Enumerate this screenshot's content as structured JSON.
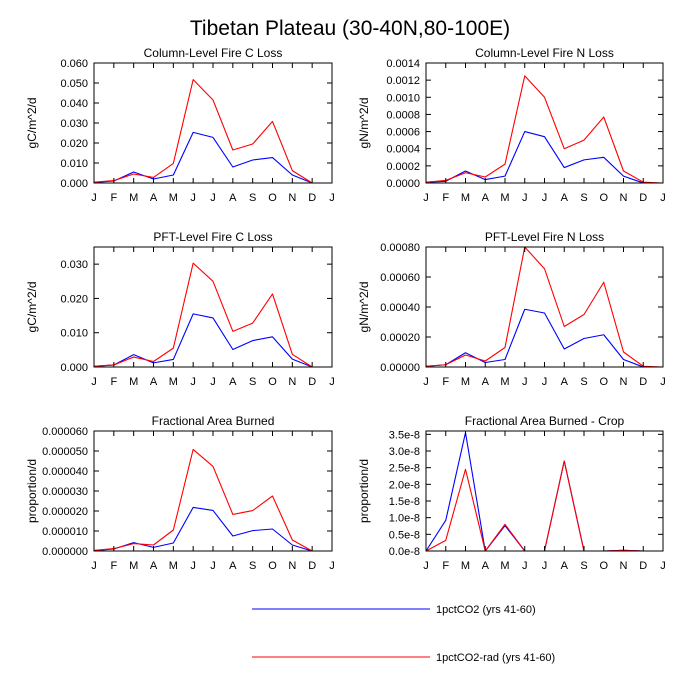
{
  "figure_title": "Tibetan Plateau (30-40N,80-100E)",
  "colors": {
    "series1": "#0000ff",
    "series2": "#ff0000",
    "frame": "#000000"
  },
  "legend": [
    {
      "label": "1pctCO2 (yrs 41-60)",
      "color": "#0000ff"
    },
    {
      "label": "1pctCO2-rad (yrs 41-60)",
      "color": "#ff0000"
    }
  ],
  "chart_data": [
    {
      "type": "line",
      "title": "Column-Level Fire C Loss",
      "ylabel": "gC/m^2/d",
      "categories": [
        "J",
        "F",
        "M",
        "A",
        "M",
        "J",
        "J",
        "A",
        "S",
        "O",
        "N",
        "D",
        "J"
      ],
      "ylim": [
        0,
        0.06
      ],
      "yticks": [
        0,
        0.01,
        0.02,
        0.03,
        0.04,
        0.05,
        0.06
      ],
      "ytick_labels": [
        "0.000",
        "0.010",
        "0.020",
        "0.030",
        "0.040",
        "0.050",
        "0.060"
      ],
      "series": [
        {
          "name": "1pctCO2 (yrs 41-60)",
          "values": [
            0.0003,
            0.001,
            0.0055,
            0.002,
            0.004,
            0.0253,
            0.0228,
            0.008,
            0.0115,
            0.0127,
            0.004,
            0,
            0
          ]
        },
        {
          "name": "1pctCO2-rad (yrs 41-60)",
          "values": [
            0.0004,
            0.0012,
            0.0045,
            0.0028,
            0.0098,
            0.0517,
            0.0415,
            0.0165,
            0.0195,
            0.0308,
            0.0062,
            0,
            0
          ]
        }
      ]
    },
    {
      "type": "line",
      "title": "Column-Level Fire N Loss",
      "ylabel": "gN/m^2/d",
      "categories": [
        "J",
        "F",
        "M",
        "A",
        "M",
        "J",
        "J",
        "A",
        "S",
        "O",
        "N",
        "D",
        "J"
      ],
      "ylim": [
        0,
        0.0014
      ],
      "yticks": [
        0,
        0.0002,
        0.0004,
        0.0006,
        0.0008,
        0.001,
        0.0012,
        0.0014
      ],
      "ytick_labels": [
        "0.0000",
        "0.0002",
        "0.0004",
        "0.0006",
        "0.0008",
        "0.0010",
        "0.0012",
        "0.0014"
      ],
      "series": [
        {
          "name": "1pctCO2 (yrs 41-60)",
          "values": [
            1e-05,
            2e-05,
            0.00014,
            4e-05,
            8e-05,
            0.0006,
            0.00054,
            0.00018,
            0.00027,
            0.0003,
            8e-05,
            0,
            0
          ]
        },
        {
          "name": "1pctCO2-rad (yrs 41-60)",
          "values": [
            1e-05,
            3e-05,
            0.00012,
            7e-05,
            0.00022,
            0.00125,
            0.001,
            0.0004,
            0.0005,
            0.00077,
            0.00014,
            1e-05,
            0
          ]
        }
      ]
    },
    {
      "type": "line",
      "title": "PFT-Level Fire C Loss",
      "ylabel": "gC/m^2/d",
      "categories": [
        "J",
        "F",
        "M",
        "A",
        "M",
        "J",
        "J",
        "A",
        "S",
        "O",
        "N",
        "D",
        "J"
      ],
      "ylim": [
        0,
        0.035
      ],
      "yticks": [
        0,
        0.01,
        0.02,
        0.03
      ],
      "ytick_labels": [
        "0.000",
        "0.010",
        "0.020",
        "0.030"
      ],
      "series": [
        {
          "name": "1pctCO2 (yrs 41-60)",
          "values": [
            0.0002,
            0.0006,
            0.0036,
            0.0012,
            0.0022,
            0.0155,
            0.0143,
            0.0051,
            0.0077,
            0.0088,
            0.0023,
            0,
            0
          ]
        },
        {
          "name": "1pctCO2-rad (yrs 41-60)",
          "values": [
            0.0002,
            0.0006,
            0.0029,
            0.0016,
            0.0055,
            0.0303,
            0.025,
            0.0104,
            0.0128,
            0.0213,
            0.0037,
            0,
            0
          ]
        }
      ]
    },
    {
      "type": "line",
      "title": "PFT-Level Fire N Loss",
      "ylabel": "gN/m^2/d",
      "categories": [
        "J",
        "F",
        "M",
        "A",
        "M",
        "J",
        "J",
        "A",
        "S",
        "O",
        "N",
        "D",
        "J"
      ],
      "ylim": [
        0,
        0.0008
      ],
      "yticks": [
        0,
        0.0002,
        0.0004,
        0.0006,
        0.0008
      ],
      "ytick_labels": [
        "0.00000",
        "0.00020",
        "0.00040",
        "0.00060",
        "0.00080"
      ],
      "series": [
        {
          "name": "1pctCO2 (yrs 41-60)",
          "values": [
            5e-06,
            1.5e-05,
            9.5e-05,
            3e-05,
            5e-05,
            0.000385,
            0.00036,
            0.00012,
            0.00019,
            0.000215,
            5e-05,
            0,
            0
          ]
        },
        {
          "name": "1pctCO2-rad (yrs 41-60)",
          "values": [
            5e-06,
            1.5e-05,
            8e-05,
            4e-05,
            0.00013,
            0.0008,
            0.000655,
            0.00027,
            0.00035,
            0.000565,
            0.0001,
            5e-06,
            0
          ]
        }
      ]
    },
    {
      "type": "line",
      "title": "Fractional Area Burned",
      "ylabel": "proportion/d",
      "categories": [
        "J",
        "F",
        "M",
        "A",
        "M",
        "J",
        "J",
        "A",
        "S",
        "O",
        "N",
        "D",
        "J"
      ],
      "ylim": [
        0,
        6e-05
      ],
      "yticks": [
        0,
        1e-05,
        2e-05,
        3e-05,
        4e-05,
        5e-05,
        6e-05
      ],
      "ytick_labels": [
        "0.000000",
        "0.000010",
        "0.000020",
        "0.000030",
        "0.000040",
        "0.000050",
        "0.000060"
      ],
      "series": [
        {
          "name": "1pctCO2 (yrs 41-60)",
          "values": [
            2e-07,
            1e-06,
            4.2e-06,
            1.8e-06,
            4e-06,
            2.18e-05,
            2.03e-05,
            7.5e-06,
            1.02e-05,
            1.1e-05,
            3e-06,
            0,
            0
          ]
        },
        {
          "name": "1pctCO2-rad (yrs 41-60)",
          "values": [
            3e-07,
            1.2e-06,
            3.7e-06,
            3e-06,
            1.05e-05,
            5.08e-05,
            4.23e-05,
            1.83e-05,
            2.02e-05,
            2.75e-05,
            5.5e-06,
            0,
            0
          ]
        }
      ]
    },
    {
      "type": "line",
      "title": "Fractional Area Burned - Crop",
      "ylabel": "proportion/d",
      "categories": [
        "J",
        "F",
        "M",
        "A",
        "M",
        "J",
        "J",
        "A",
        "S",
        "O",
        "N",
        "D",
        "J"
      ],
      "ylim": [
        0,
        3.6e-08
      ],
      "yticks": [
        0,
        5e-09,
        1e-08,
        1.5e-08,
        2e-08,
        2.5e-08,
        3e-08,
        3.5e-08
      ],
      "ytick_labels": [
        "0.0e-8",
        "0.5e-8",
        "1.0e-8",
        "1.5e-8",
        "2.0e-8",
        "2.5e-8",
        "3.0e-8",
        "3.5e-8"
      ],
      "series": [
        {
          "name": "1pctCO2 (yrs 41-60)",
          "values": [
            0,
            9.2e-09,
            3.55e-08,
            0,
            7.6e-09,
            0,
            0,
            2.7e-08,
            0,
            0,
            2e-10,
            0,
            0
          ]
        },
        {
          "name": "1pctCO2-rad (yrs 41-60)",
          "values": [
            0,
            3.2e-09,
            2.45e-08,
            0,
            8e-09,
            0,
            0,
            2.7e-08,
            0,
            0,
            2e-10,
            0,
            0
          ]
        }
      ]
    }
  ]
}
